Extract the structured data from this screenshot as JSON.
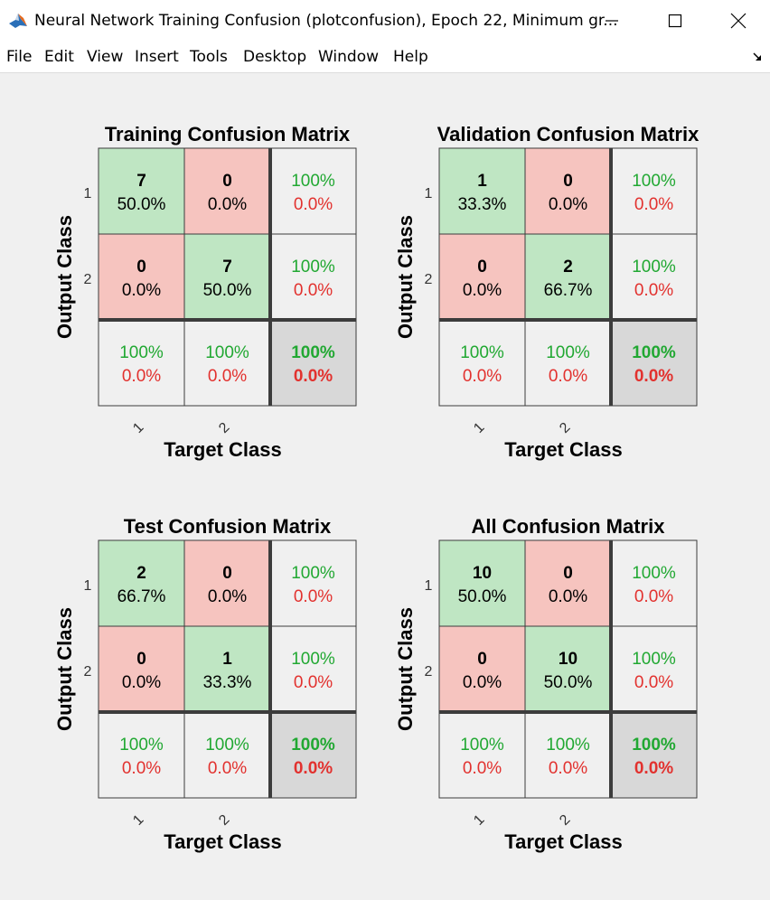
{
  "window": {
    "title": "Neural Network Training Confusion (plotconfusion), Epoch 22, Minimum gr..."
  },
  "menu": [
    "File",
    "Edit",
    "View",
    "Insert",
    "Tools",
    "Desktop",
    "Window",
    "Help"
  ],
  "colors": {
    "correct_cell": "#bfe6c3",
    "incorrect_cell": "#f6c4bf",
    "stat_cell": "#f0f0f0",
    "overall_cell": "#d8d8d8",
    "green_text": "#21a832",
    "red_text": "#e2312e"
  },
  "chart_data": [
    {
      "type": "table",
      "title": "Training Confusion Matrix",
      "xlabel": "Target Class",
      "ylabel": "Output Class",
      "classes": [
        "1",
        "2"
      ],
      "matrix": [
        [
          {
            "count": "7",
            "pct": "50.0%"
          },
          {
            "count": "0",
            "pct": "0.0%"
          }
        ],
        [
          {
            "count": "0",
            "pct": "0.0%"
          },
          {
            "count": "7",
            "pct": "50.0%"
          }
        ]
      ],
      "row_stats": [
        {
          "correct": "100%",
          "wrong": "0.0%"
        },
        {
          "correct": "100%",
          "wrong": "0.0%"
        }
      ],
      "col_stats": [
        {
          "correct": "100%",
          "wrong": "0.0%"
        },
        {
          "correct": "100%",
          "wrong": "0.0%"
        }
      ],
      "overall": {
        "correct": "100%",
        "wrong": "0.0%"
      }
    },
    {
      "type": "table",
      "title": "Validation Confusion Matrix",
      "xlabel": "Target Class",
      "ylabel": "Output Class",
      "classes": [
        "1",
        "2"
      ],
      "matrix": [
        [
          {
            "count": "1",
            "pct": "33.3%"
          },
          {
            "count": "0",
            "pct": "0.0%"
          }
        ],
        [
          {
            "count": "0",
            "pct": "0.0%"
          },
          {
            "count": "2",
            "pct": "66.7%"
          }
        ]
      ],
      "row_stats": [
        {
          "correct": "100%",
          "wrong": "0.0%"
        },
        {
          "correct": "100%",
          "wrong": "0.0%"
        }
      ],
      "col_stats": [
        {
          "correct": "100%",
          "wrong": "0.0%"
        },
        {
          "correct": "100%",
          "wrong": "0.0%"
        }
      ],
      "overall": {
        "correct": "100%",
        "wrong": "0.0%"
      }
    },
    {
      "type": "table",
      "title": "Test Confusion Matrix",
      "xlabel": "Target Class",
      "ylabel": "Output Class",
      "classes": [
        "1",
        "2"
      ],
      "matrix": [
        [
          {
            "count": "2",
            "pct": "66.7%"
          },
          {
            "count": "0",
            "pct": "0.0%"
          }
        ],
        [
          {
            "count": "0",
            "pct": "0.0%"
          },
          {
            "count": "1",
            "pct": "33.3%"
          }
        ]
      ],
      "row_stats": [
        {
          "correct": "100%",
          "wrong": "0.0%"
        },
        {
          "correct": "100%",
          "wrong": "0.0%"
        }
      ],
      "col_stats": [
        {
          "correct": "100%",
          "wrong": "0.0%"
        },
        {
          "correct": "100%",
          "wrong": "0.0%"
        }
      ],
      "overall": {
        "correct": "100%",
        "wrong": "0.0%"
      }
    },
    {
      "type": "table",
      "title": "All Confusion Matrix",
      "xlabel": "Target Class",
      "ylabel": "Output Class",
      "classes": [
        "1",
        "2"
      ],
      "matrix": [
        [
          {
            "count": "10",
            "pct": "50.0%"
          },
          {
            "count": "0",
            "pct": "0.0%"
          }
        ],
        [
          {
            "count": "0",
            "pct": "0.0%"
          },
          {
            "count": "10",
            "pct": "50.0%"
          }
        ]
      ],
      "row_stats": [
        {
          "correct": "100%",
          "wrong": "0.0%"
        },
        {
          "correct": "100%",
          "wrong": "0.0%"
        }
      ],
      "col_stats": [
        {
          "correct": "100%",
          "wrong": "0.0%"
        },
        {
          "correct": "100%",
          "wrong": "0.0%"
        }
      ],
      "overall": {
        "correct": "100%",
        "wrong": "0.0%"
      }
    }
  ]
}
